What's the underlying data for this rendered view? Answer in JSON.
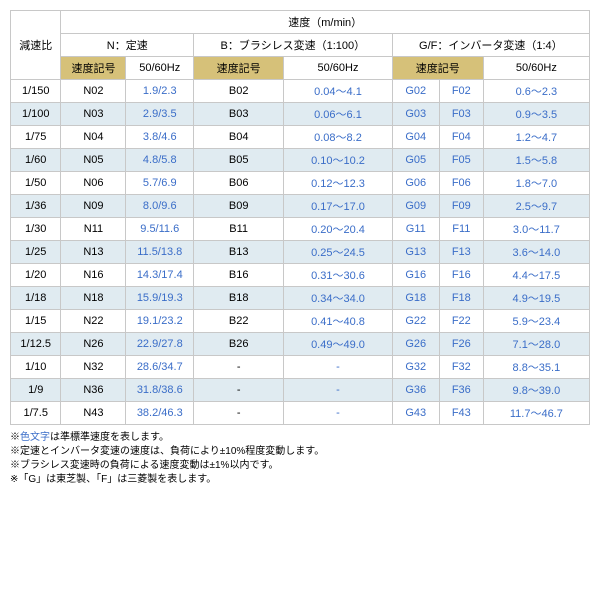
{
  "header": {
    "ratio": "減速比",
    "topGroup": "速度（m/min）",
    "groups": [
      "N：定速",
      "B：ブラシレス変速（1:100）",
      "G/F：インバータ変速（1:4）"
    ],
    "sub": [
      "速度記号",
      "50/60Hz",
      "速度記号",
      "50/60Hz",
      "速度記号",
      "50/60Hz"
    ]
  },
  "rows": [
    {
      "ratio": "1/150",
      "n": "N02",
      "nv": "1.9/2.3",
      "b": "B02",
      "bv": "0.04～4.1",
      "g": "G02",
      "f": "F02",
      "gfv": "0.6～2.3"
    },
    {
      "ratio": "1/100",
      "n": "N03",
      "nv": "2.9/3.5",
      "b": "B03",
      "bv": "0.06～6.1",
      "g": "G03",
      "f": "F03",
      "gfv": "0.9～3.5"
    },
    {
      "ratio": "1/75",
      "n": "N04",
      "nv": "3.8/4.6",
      "b": "B04",
      "bv": "0.08～8.2",
      "g": "G04",
      "f": "F04",
      "gfv": "1.2～4.7"
    },
    {
      "ratio": "1/60",
      "n": "N05",
      "nv": "4.8/5.8",
      "b": "B05",
      "bv": "0.10～10.2",
      "g": "G05",
      "f": "F05",
      "gfv": "1.5～5.8"
    },
    {
      "ratio": "1/50",
      "n": "N06",
      "nv": "5.7/6.9",
      "b": "B06",
      "bv": "0.12～12.3",
      "g": "G06",
      "f": "F06",
      "gfv": "1.8～7.0"
    },
    {
      "ratio": "1/36",
      "n": "N09",
      "nv": "8.0/9.6",
      "b": "B09",
      "bv": "0.17～17.0",
      "g": "G09",
      "f": "F09",
      "gfv": "2.5～9.7"
    },
    {
      "ratio": "1/30",
      "n": "N11",
      "nv": "9.5/11.6",
      "b": "B11",
      "bv": "0.20～20.4",
      "g": "G11",
      "f": "F11",
      "gfv": "3.0～11.7"
    },
    {
      "ratio": "1/25",
      "n": "N13",
      "nv": "11.5/13.8",
      "b": "B13",
      "bv": "0.25～24.5",
      "g": "G13",
      "f": "F13",
      "gfv": "3.6～14.0"
    },
    {
      "ratio": "1/20",
      "n": "N16",
      "nv": "14.3/17.4",
      "b": "B16",
      "bv": "0.31～30.6",
      "g": "G16",
      "f": "F16",
      "gfv": "4.4～17.5"
    },
    {
      "ratio": "1/18",
      "n": "N18",
      "nv": "15.9/19.3",
      "b": "B18",
      "bv": "0.34～34.0",
      "g": "G18",
      "f": "F18",
      "gfv": "4.9～19.5"
    },
    {
      "ratio": "1/15",
      "n": "N22",
      "nv": "19.1/23.2",
      "b": "B22",
      "bv": "0.41～40.8",
      "g": "G22",
      "f": "F22",
      "gfv": "5.9～23.4"
    },
    {
      "ratio": "1/12.5",
      "n": "N26",
      "nv": "22.9/27.8",
      "b": "B26",
      "bv": "0.49～49.0",
      "g": "G26",
      "f": "F26",
      "gfv": "7.1～28.0"
    },
    {
      "ratio": "1/10",
      "n": "N32",
      "nv": "28.6/34.7",
      "b": "-",
      "bv": "-",
      "g": "G32",
      "f": "F32",
      "gfv": "8.8～35.1"
    },
    {
      "ratio": "1/9",
      "n": "N36",
      "nv": "31.8/38.6",
      "b": "-",
      "bv": "-",
      "g": "G36",
      "f": "F36",
      "gfv": "9.8～39.0"
    },
    {
      "ratio": "1/7.5",
      "n": "N43",
      "nv": "38.2/46.3",
      "b": "-",
      "bv": "-",
      "g": "G43",
      "f": "F43",
      "gfv": "11.7～46.7"
    }
  ],
  "notes": [
    {
      "pre": "※",
      "blue": "色文字",
      "post": "は準標準速度を表します。"
    },
    {
      "pre": "※定速とインバータ変速の速度は、負荷により±10%程度変動します。",
      "blue": "",
      "post": ""
    },
    {
      "pre": "※ブラシレス変速時の負荷による速度変動は±1%以内です。",
      "blue": "",
      "post": ""
    },
    {
      "pre": "※「G」は東芝製、「F」は三菱製を表します。",
      "blue": "",
      "post": ""
    }
  ]
}
